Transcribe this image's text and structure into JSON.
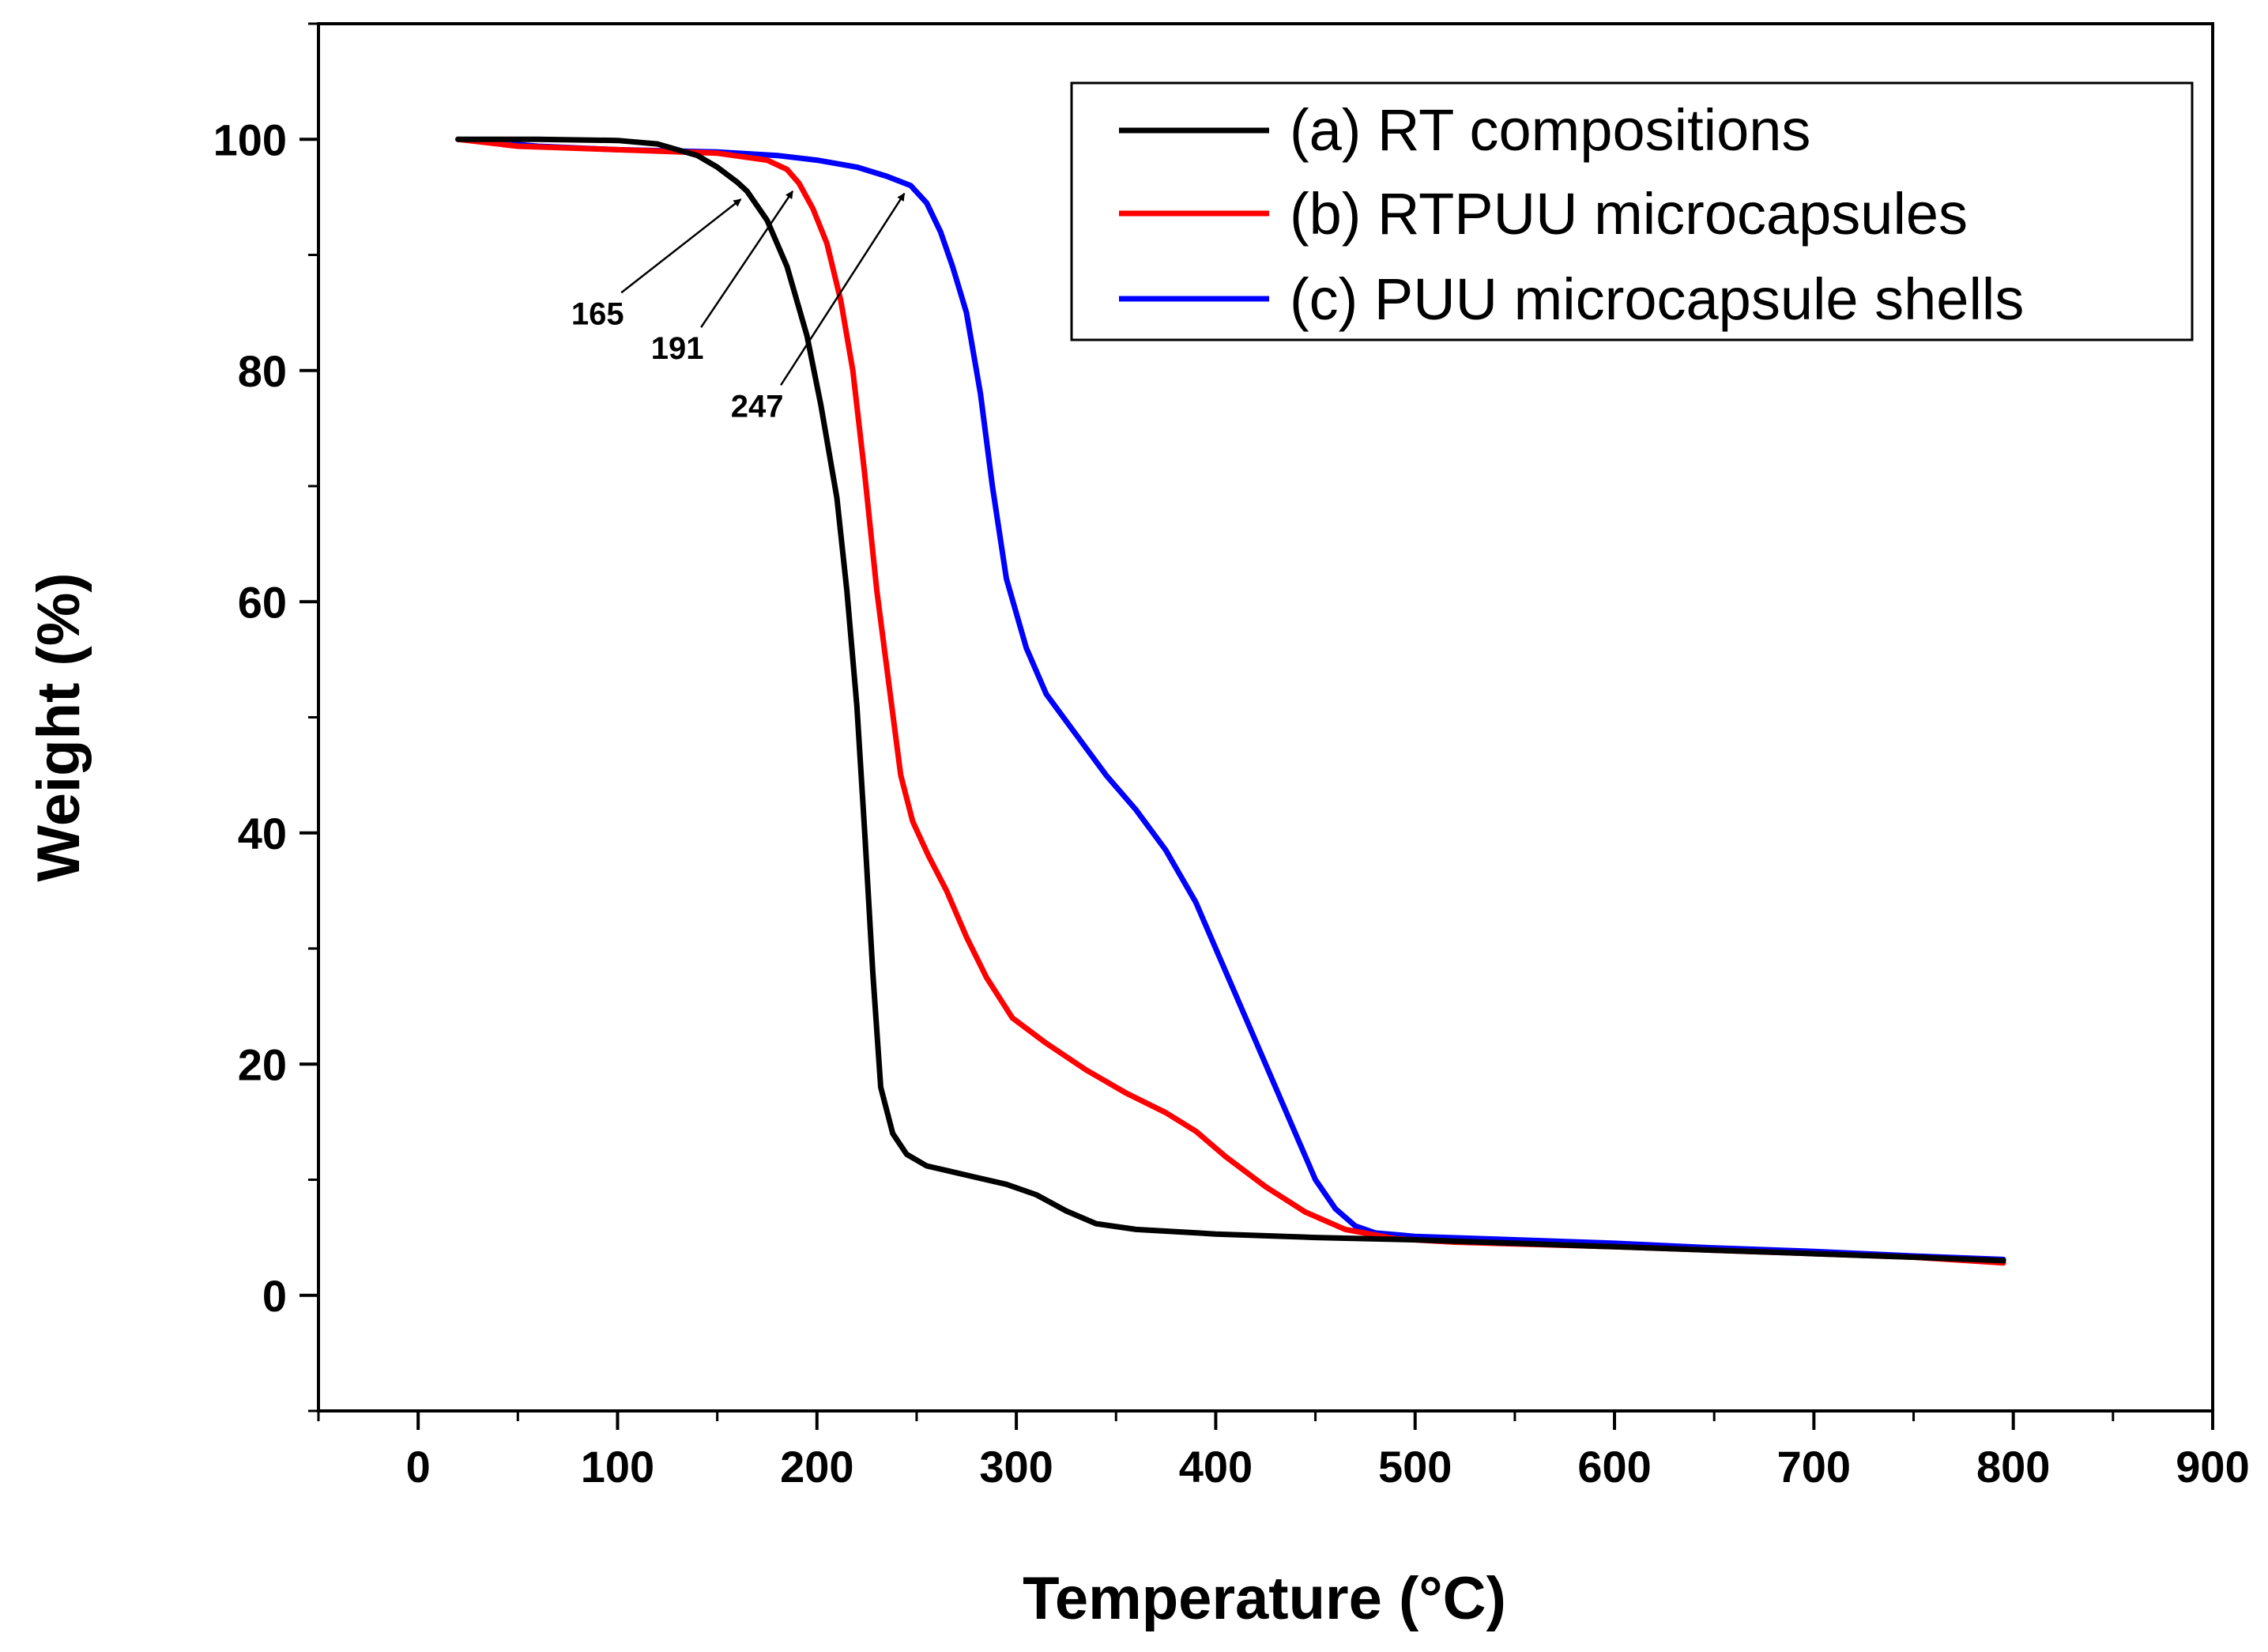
{
  "chart_data": {
    "type": "line",
    "xlabel": "Temperature (°C)",
    "ylabel": "Weight (%)",
    "xlim": [
      -50,
      900
    ],
    "ylim": [
      -10,
      110
    ],
    "xticks": [
      0,
      100,
      200,
      300,
      400,
      500,
      600,
      700,
      800,
      900
    ],
    "yticks": [
      0,
      20,
      40,
      60,
      80,
      100
    ],
    "grid": false,
    "legend_position": "top-right",
    "series": [
      {
        "name": "(a) RT compositions",
        "color": "#000000",
        "points": [
          [
            20,
            100
          ],
          [
            60,
            100
          ],
          [
            100,
            99.9
          ],
          [
            120,
            99.6
          ],
          [
            140,
            98.6
          ],
          [
            150,
            97.6
          ],
          [
            160,
            96.3
          ],
          [
            165,
            95.5
          ],
          [
            175,
            93
          ],
          [
            185,
            89
          ],
          [
            195,
            83
          ],
          [
            202,
            77
          ],
          [
            210,
            69
          ],
          [
            215,
            61
          ],
          [
            220,
            51
          ],
          [
            224,
            40
          ],
          [
            228,
            28
          ],
          [
            232,
            18
          ],
          [
            238,
            14
          ],
          [
            245,
            12.2
          ],
          [
            255,
            11.2
          ],
          [
            265,
            10.8
          ],
          [
            280,
            10.2
          ],
          [
            295,
            9.6
          ],
          [
            310,
            8.7
          ],
          [
            325,
            7.3
          ],
          [
            340,
            6.2
          ],
          [
            360,
            5.7
          ],
          [
            380,
            5.5
          ],
          [
            400,
            5.3
          ],
          [
            450,
            5.0
          ],
          [
            500,
            4.8
          ],
          [
            550,
            4.5
          ],
          [
            600,
            4.2
          ],
          [
            650,
            3.9
          ],
          [
            700,
            3.6
          ],
          [
            750,
            3.3
          ],
          [
            795,
            3.0
          ]
        ]
      },
      {
        "name": "(b) RTPUU microcapsules",
        "color": "#ff0000",
        "points": [
          [
            20,
            100
          ],
          [
            50,
            99.4
          ],
          [
            100,
            99.1
          ],
          [
            150,
            98.8
          ],
          [
            175,
            98.2
          ],
          [
            185,
            97.4
          ],
          [
            191,
            96.2
          ],
          [
            198,
            94
          ],
          [
            205,
            91
          ],
          [
            212,
            86
          ],
          [
            218,
            80
          ],
          [
            224,
            71
          ],
          [
            230,
            61
          ],
          [
            236,
            53
          ],
          [
            242,
            45
          ],
          [
            248,
            41
          ],
          [
            256,
            38
          ],
          [
            265,
            35
          ],
          [
            275,
            31
          ],
          [
            285,
            27.5
          ],
          [
            298,
            24
          ],
          [
            315,
            21.8
          ],
          [
            335,
            19.5
          ],
          [
            355,
            17.5
          ],
          [
            375,
            15.8
          ],
          [
            390,
            14.2
          ],
          [
            405,
            12
          ],
          [
            425,
            9.4
          ],
          [
            445,
            7.2
          ],
          [
            465,
            5.7
          ],
          [
            490,
            4.9
          ],
          [
            520,
            4.6
          ],
          [
            560,
            4.4
          ],
          [
            600,
            4.2
          ],
          [
            650,
            3.9
          ],
          [
            700,
            3.6
          ],
          [
            750,
            3.3
          ],
          [
            795,
            2.8
          ]
        ]
      },
      {
        "name": "(c) PUU microcapsule shells",
        "color": "#0000ff",
        "points": [
          [
            20,
            100
          ],
          [
            60,
            99.4
          ],
          [
            100,
            99.1
          ],
          [
            150,
            98.9
          ],
          [
            180,
            98.6
          ],
          [
            200,
            98.2
          ],
          [
            220,
            97.6
          ],
          [
            235,
            96.8
          ],
          [
            247,
            96
          ],
          [
            255,
            94.5
          ],
          [
            262,
            92
          ],
          [
            268,
            89
          ],
          [
            275,
            85
          ],
          [
            282,
            78
          ],
          [
            288,
            70
          ],
          [
            295,
            62
          ],
          [
            305,
            56
          ],
          [
            315,
            52
          ],
          [
            330,
            48.5
          ],
          [
            345,
            45
          ],
          [
            360,
            42
          ],
          [
            375,
            38.5
          ],
          [
            390,
            34
          ],
          [
            400,
            30
          ],
          [
            410,
            26
          ],
          [
            420,
            22
          ],
          [
            430,
            18
          ],
          [
            440,
            14
          ],
          [
            450,
            10
          ],
          [
            460,
            7.5
          ],
          [
            470,
            6
          ],
          [
            480,
            5.4
          ],
          [
            500,
            5.1
          ],
          [
            550,
            4.8
          ],
          [
            600,
            4.5
          ],
          [
            650,
            4.1
          ],
          [
            700,
            3.8
          ],
          [
            750,
            3.4
          ],
          [
            795,
            3.1
          ]
        ]
      }
    ],
    "annotations": [
      {
        "label": "165",
        "at": [
          165,
          95.5
        ],
        "text_at": [
          90,
          84
        ]
      },
      {
        "label": "191",
        "at": [
          191,
          96.2
        ],
        "text_at": [
          130,
          81
        ]
      },
      {
        "label": "247",
        "at": [
          247,
          96
        ],
        "text_at": [
          170,
          76
        ]
      }
    ]
  }
}
